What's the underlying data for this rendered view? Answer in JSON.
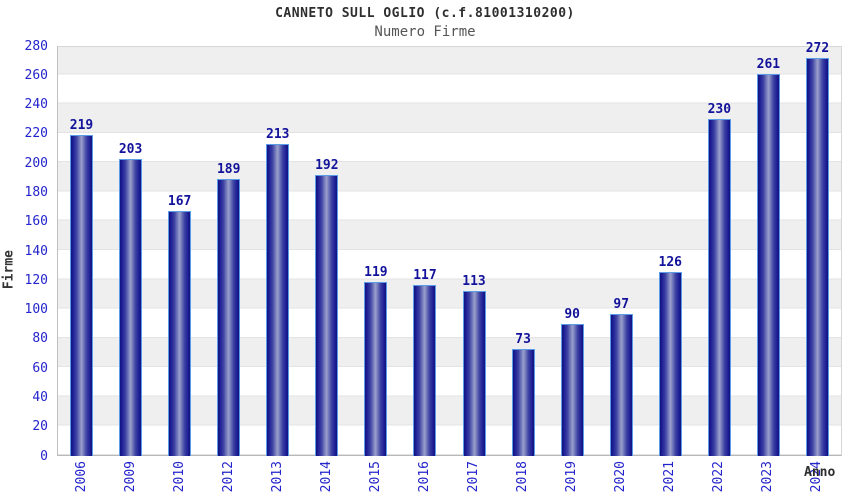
{
  "header": {
    "title": "CANNETO SULL OGLIO (c.f.81001310200)",
    "subtitle": "Numero Firme"
  },
  "chart_data": {
    "type": "bar",
    "title": "CANNETO SULL OGLIO (c.f.81001310200)",
    "subtitle": "Numero Firme",
    "xlabel": "Anno",
    "ylabel": "Firme",
    "categories": [
      "2006",
      "2009",
      "2010",
      "2012",
      "2013",
      "2014",
      "2015",
      "2016",
      "2017",
      "2018",
      "2019",
      "2020",
      "2021",
      "2022",
      "2023",
      "2024"
    ],
    "values": [
      219,
      203,
      167,
      189,
      213,
      192,
      119,
      117,
      113,
      73,
      90,
      97,
      126,
      230,
      261,
      272
    ],
    "ylim": [
      0,
      280
    ],
    "ytick_step": 20,
    "grid": "horizontal-bands-alternating",
    "legend": "none",
    "colors": {
      "bar_dark": "#12127c",
      "bar_mid": "#3a3fa2",
      "bar_light": "#9aa0cc",
      "bar_border": "#5b9ce6",
      "tick_label": "#2424cc",
      "value_label": "#12129b",
      "band_gray": "#efefef",
      "band_white": "#ffffff",
      "axis_text": "#2e2e2e"
    }
  }
}
